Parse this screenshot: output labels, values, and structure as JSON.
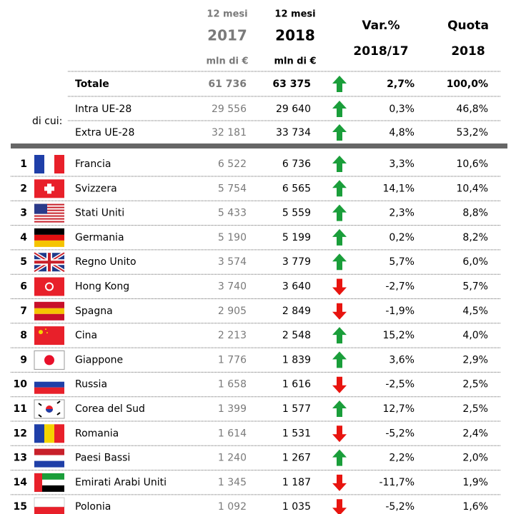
{
  "header": {
    "col2017": {
      "period": "12 mesi",
      "year": "2017",
      "unit": "mln di €"
    },
    "col2018": {
      "period": "12 mesi",
      "year": "2018",
      "unit": "mln di €"
    },
    "var": {
      "line1": "Var.%",
      "line2": "2018/17"
    },
    "quota": {
      "line1": "Quota",
      "line2": "2018"
    }
  },
  "total": {
    "label": "Totale",
    "v2017": "61 736",
    "v2018": "63 375",
    "var": "2,7%",
    "quota": "100,0%"
  },
  "subgroup_label": "di cui:",
  "subtotals": [
    {
      "label": "Intra UE-28",
      "v2017": "29 556",
      "v2018": "29 640",
      "var": "0,3%",
      "quota": "46,8%"
    },
    {
      "label": "Extra UE-28",
      "v2017": "32 181",
      "v2018": "33 734",
      "var": "4,8%",
      "quota": "53,2%"
    }
  ],
  "rows": [
    {
      "rank": "1",
      "name": "Francia",
      "v2017": "6 522",
      "v2018": "6 736",
      "var": "3,3%",
      "quota": "10,6%"
    },
    {
      "rank": "2",
      "name": "Svizzera",
      "v2017": "5 754",
      "v2018": "6 565",
      "var": "14,1%",
      "quota": "10,4%"
    },
    {
      "rank": "3",
      "name": "Stati Uniti",
      "v2017": "5 433",
      "v2018": "5 559",
      "var": "2,3%",
      "quota": "8,8%"
    },
    {
      "rank": "4",
      "name": "Germania",
      "v2017": "5 190",
      "v2018": "5 199",
      "var": "0,2%",
      "quota": "8,2%"
    },
    {
      "rank": "5",
      "name": "Regno Unito",
      "v2017": "3 574",
      "v2018": "3 779",
      "var": "5,7%",
      "quota": "6,0%"
    },
    {
      "rank": "6",
      "name": "Hong Kong",
      "v2017": "3 740",
      "v2018": "3 640",
      "var": "-2,7%",
      "quota": "5,7%"
    },
    {
      "rank": "7",
      "name": "Spagna",
      "v2017": "2 905",
      "v2018": "2 849",
      "var": "-1,9%",
      "quota": "4,5%"
    },
    {
      "rank": "8",
      "name": "Cina",
      "v2017": "2 213",
      "v2018": "2 548",
      "var": "15,2%",
      "quota": "4,0%"
    },
    {
      "rank": "9",
      "name": "Giappone",
      "v2017": "1 776",
      "v2018": "1 839",
      "var": "3,6%",
      "quota": "2,9%"
    },
    {
      "rank": "10",
      "name": "Russia",
      "v2017": "1 658",
      "v2018": "1 616",
      "var": "-2,5%",
      "quota": "2,5%"
    },
    {
      "rank": "11",
      "name": "Corea del Sud",
      "v2017": "1 399",
      "v2018": "1 577",
      "var": "12,7%",
      "quota": "2,5%"
    },
    {
      "rank": "12",
      "name": "Romania",
      "v2017": "1 614",
      "v2018": "1 531",
      "var": "-5,2%",
      "quota": "2,4%"
    },
    {
      "rank": "13",
      "name": "Paesi Bassi",
      "v2017": "1 240",
      "v2018": "1 267",
      "var": "2,2%",
      "quota": "2,0%"
    },
    {
      "rank": "14",
      "name": "Emirati Arabi Uniti",
      "v2017": "1 345",
      "v2018": "1 187",
      "var": "-11,7%",
      "quota": "1,9%"
    },
    {
      "rank": "15",
      "name": "Polonia",
      "v2017": "1 092",
      "v2018": "1 035",
      "var": "-5,2%",
      "quota": "1,6%"
    }
  ]
}
